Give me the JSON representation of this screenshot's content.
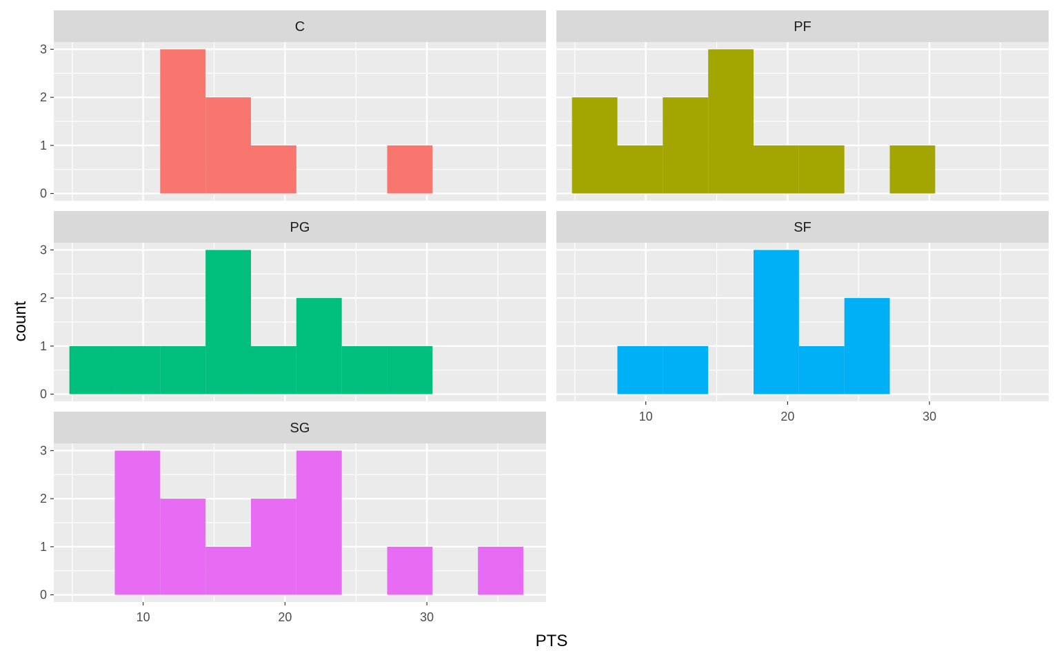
{
  "chart_data": {
    "type": "bar",
    "subtype": "faceted-histogram",
    "xlabel": "PTS",
    "ylabel": "count",
    "xlim": [
      3.7,
      38.4
    ],
    "ylim": [
      -0.15,
      3.15
    ],
    "x_ticks": [
      10,
      20,
      30
    ],
    "y_ticks": [
      0,
      1,
      2,
      3
    ],
    "grid": true,
    "legend": "none",
    "colors": {
      "panel_background": "#EBEBEB",
      "strip_background": "#D9D9D9",
      "grid": "#FFFFFF"
    },
    "bin_edges": [
      4.8,
      8.0,
      11.2,
      14.4,
      17.6,
      20.8,
      24.0,
      27.2,
      30.4,
      33.6,
      36.8
    ],
    "series": [
      {
        "name": "C",
        "color": "#F8766D",
        "values": [
          0,
          0,
          3,
          2,
          1,
          0,
          0,
          1,
          0,
          0
        ]
      },
      {
        "name": "PF",
        "color": "#A3A500",
        "values": [
          2,
          1,
          2,
          3,
          1,
          1,
          0,
          1,
          0,
          0
        ]
      },
      {
        "name": "PG",
        "color": "#00BF7D",
        "values": [
          1,
          1,
          1,
          3,
          1,
          2,
          1,
          1,
          0,
          0
        ]
      },
      {
        "name": "SF",
        "color": "#00B0F6",
        "values": [
          0,
          1,
          1,
          0,
          3,
          1,
          2,
          0,
          0,
          0
        ]
      },
      {
        "name": "SG",
        "color": "#E76BF3",
        "values": [
          0,
          3,
          2,
          1,
          2,
          3,
          0,
          1,
          0,
          1
        ]
      }
    ]
  }
}
